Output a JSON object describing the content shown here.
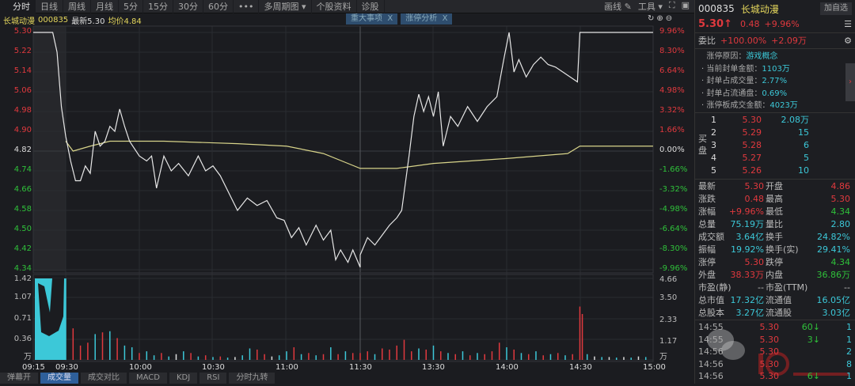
{
  "toolbar": {
    "tabs": [
      "分时",
      "日线",
      "周线",
      "月线",
      "5分",
      "15分",
      "30分",
      "60分",
      "•••",
      "多周期图 ▾",
      "个股资料",
      "诊股"
    ],
    "selected": 0,
    "draw": "画线 ✎",
    "tools": "工具 ▾"
  },
  "info": {
    "name": "长城动漫",
    "code": "000835",
    "latest": "最新5.30",
    "avg": "均价4.84",
    "tags": [
      {
        "label": "重大事项",
        "close": "X"
      },
      {
        "label": "涨停分析",
        "close": "X"
      }
    ]
  },
  "price_axis": {
    "left": [
      "5.30",
      "5.22",
      "5.14",
      "5.06",
      "4.98",
      "4.90",
      "4.82",
      "4.74",
      "4.66",
      "4.58",
      "4.50",
      "4.42",
      "4.34"
    ],
    "right": [
      "9.96%",
      "8.30%",
      "6.64%",
      "4.98%",
      "3.32%",
      "1.66%",
      "0.00%",
      "-1.66%",
      "-3.32%",
      "-4.98%",
      "-6.64%",
      "-8.30%",
      "-9.96%"
    ]
  },
  "volume_axis": {
    "left": [
      "1.42",
      "1.07",
      "0.71",
      "0.36",
      "万"
    ],
    "right": [
      "4.66",
      "3.50",
      "2.33",
      "1.17",
      "万"
    ]
  },
  "time_axis": [
    "09:15",
    "09:30",
    "10:00",
    "10:30",
    "11:00",
    "11:30",
    "13:30",
    "14:00",
    "14:30",
    "15:00"
  ],
  "bottom_tabs": [
    "弹幕开",
    "成交量",
    "成交对比",
    "MACD",
    "KDJ",
    "RSI",
    "分时九转"
  ],
  "chart_data": {
    "type": "line",
    "prev_close": 4.82,
    "ylim": [
      4.34,
      5.3
    ],
    "price": [
      [
        "09:15",
        5.3
      ],
      [
        "09:24",
        5.3
      ],
      [
        "09:26",
        5.22
      ],
      [
        "09:28",
        5.0
      ],
      [
        "09:30",
        4.88
      ],
      [
        "09:32",
        4.78
      ],
      [
        "09:34",
        4.7
      ],
      [
        "09:36",
        4.7
      ],
      [
        "09:38",
        4.76
      ],
      [
        "09:40",
        4.73
      ],
      [
        "09:42",
        4.9
      ],
      [
        "09:44",
        4.84
      ],
      [
        "09:46",
        4.86
      ],
      [
        "09:48",
        4.92
      ],
      [
        "09:50",
        4.9
      ],
      [
        "09:52",
        4.99
      ],
      [
        "09:54",
        4.92
      ],
      [
        "09:56",
        4.86
      ],
      [
        "10:00",
        4.8
      ],
      [
        "10:03",
        4.78
      ],
      [
        "10:05",
        4.8
      ],
      [
        "10:07",
        4.67
      ],
      [
        "10:10",
        4.8
      ],
      [
        "10:13",
        4.74
      ],
      [
        "10:16",
        4.77
      ],
      [
        "10:20",
        4.72
      ],
      [
        "10:24",
        4.8
      ],
      [
        "10:27",
        4.74
      ],
      [
        "10:30",
        4.76
      ],
      [
        "10:33",
        4.72
      ],
      [
        "10:36",
        4.66
      ],
      [
        "10:40",
        4.58
      ],
      [
        "10:44",
        4.63
      ],
      [
        "10:48",
        4.6
      ],
      [
        "10:52",
        4.62
      ],
      [
        "10:56",
        4.55
      ],
      [
        "10:59",
        4.54
      ],
      [
        "11:02",
        4.47
      ],
      [
        "11:05",
        4.51
      ],
      [
        "11:08",
        4.44
      ],
      [
        "11:12",
        4.52
      ],
      [
        "11:15",
        4.46
      ],
      [
        "11:18",
        4.5
      ],
      [
        "11:20",
        4.38
      ],
      [
        "11:22",
        4.42
      ],
      [
        "11:25",
        4.37
      ],
      [
        "11:27",
        4.42
      ],
      [
        "11:30",
        4.35
      ],
      [
        "13:00",
        4.4
      ],
      [
        "13:03",
        4.47
      ],
      [
        "13:06",
        4.44
      ],
      [
        "13:09",
        4.48
      ],
      [
        "13:12",
        4.52
      ],
      [
        "13:15",
        4.55
      ],
      [
        "13:17",
        4.58
      ],
      [
        "13:20",
        4.8
      ],
      [
        "13:22",
        4.96
      ],
      [
        "13:24",
        5.05
      ],
      [
        "13:26",
        4.98
      ],
      [
        "13:28",
        5.04
      ],
      [
        "13:30",
        4.96
      ],
      [
        "13:32",
        5.06
      ],
      [
        "13:34",
        4.84
      ],
      [
        "13:37",
        4.96
      ],
      [
        "13:40",
        4.92
      ],
      [
        "13:44",
        5.0
      ],
      [
        "13:48",
        4.94
      ],
      [
        "13:52",
        5.0
      ],
      [
        "13:56",
        5.04
      ],
      [
        "13:59",
        5.2
      ],
      [
        "14:01",
        5.3
      ],
      [
        "14:03",
        5.14
      ],
      [
        "14:05",
        5.19
      ],
      [
        "14:08",
        5.12
      ],
      [
        "14:11",
        5.17
      ],
      [
        "14:14",
        5.2
      ],
      [
        "14:17",
        5.17
      ],
      [
        "14:20",
        5.16
      ],
      [
        "14:23",
        5.14
      ],
      [
        "14:26",
        5.12
      ],
      [
        "14:29",
        5.1
      ],
      [
        "14:30",
        5.3
      ],
      [
        "15:00",
        5.3
      ]
    ],
    "avg": [
      [
        "09:30",
        4.86
      ],
      [
        "09:33",
        4.82
      ],
      [
        "09:40",
        4.84
      ],
      [
        "09:48",
        4.86
      ],
      [
        "10:10",
        4.86
      ],
      [
        "10:40",
        4.85
      ],
      [
        "11:00",
        4.84
      ],
      [
        "11:15",
        4.81
      ],
      [
        "11:25",
        4.77
      ],
      [
        "11:30",
        4.75
      ],
      [
        "13:15",
        4.75
      ],
      [
        "13:30",
        4.77
      ],
      [
        "14:00",
        4.79
      ],
      [
        "14:25",
        4.81
      ],
      [
        "14:30",
        4.84
      ],
      [
        "15:00",
        4.84
      ]
    ],
    "volume": [
      [
        "09:30",
        1.42,
        "d"
      ],
      [
        "09:33",
        0.55,
        "u"
      ],
      [
        "09:36",
        0.25,
        "u"
      ],
      [
        "09:39",
        0.3,
        "u"
      ],
      [
        "09:42",
        0.45,
        "d"
      ],
      [
        "09:45",
        0.48,
        "u"
      ],
      [
        "09:48",
        0.5,
        "d"
      ],
      [
        "09:51",
        0.38,
        "u"
      ],
      [
        "09:54",
        0.25,
        "d"
      ],
      [
        "09:57",
        0.22,
        "d"
      ],
      [
        "10:00",
        0.12,
        "u"
      ],
      [
        "10:03",
        0.15,
        "d"
      ],
      [
        "10:06",
        0.08,
        "d"
      ],
      [
        "10:09",
        0.12,
        "u"
      ],
      [
        "10:12",
        0.06,
        "d"
      ],
      [
        "10:15",
        0.1,
        "n"
      ],
      [
        "10:18",
        0.15,
        "d"
      ],
      [
        "10:21",
        0.12,
        "u"
      ],
      [
        "10:24",
        0.06,
        "d"
      ],
      [
        "10:27",
        0.08,
        "u"
      ],
      [
        "10:30",
        0.05,
        "d"
      ],
      [
        "10:33",
        0.06,
        "u"
      ],
      [
        "10:36",
        0.04,
        "d"
      ],
      [
        "10:39",
        0.05,
        "n"
      ],
      [
        "10:42",
        0.08,
        "d"
      ],
      [
        "10:45",
        0.2,
        "d"
      ],
      [
        "10:48",
        0.18,
        "u"
      ],
      [
        "10:51",
        0.1,
        "u"
      ],
      [
        "10:54",
        0.06,
        "n"
      ],
      [
        "10:57",
        0.08,
        "d"
      ],
      [
        "11:00",
        0.15,
        "d"
      ],
      [
        "11:03",
        0.22,
        "u"
      ],
      [
        "11:06",
        0.1,
        "d"
      ],
      [
        "11:09",
        0.12,
        "u"
      ],
      [
        "11:12",
        0.08,
        "d"
      ],
      [
        "11:15",
        0.1,
        "u"
      ],
      [
        "11:18",
        0.22,
        "d"
      ],
      [
        "11:21",
        0.1,
        "u"
      ],
      [
        "11:24",
        0.15,
        "d"
      ],
      [
        "11:27",
        0.12,
        "u"
      ],
      [
        "13:00",
        0.12,
        "u"
      ],
      [
        "13:03",
        0.15,
        "u"
      ],
      [
        "13:06",
        0.1,
        "d"
      ],
      [
        "13:09",
        0.2,
        "u"
      ],
      [
        "13:12",
        0.18,
        "u"
      ],
      [
        "13:15",
        0.25,
        "u"
      ],
      [
        "13:18",
        0.35,
        "u"
      ],
      [
        "13:21",
        0.15,
        "u"
      ],
      [
        "13:24",
        0.2,
        "d"
      ],
      [
        "13:27",
        0.18,
        "u"
      ],
      [
        "13:30",
        0.25,
        "d"
      ],
      [
        "13:33",
        0.15,
        "u"
      ],
      [
        "13:36",
        0.12,
        "d"
      ],
      [
        "13:39",
        0.1,
        "u"
      ],
      [
        "13:42",
        0.15,
        "d"
      ],
      [
        "13:45",
        0.08,
        "u"
      ],
      [
        "13:48",
        0.12,
        "d"
      ],
      [
        "13:51",
        0.1,
        "u"
      ],
      [
        "13:54",
        0.15,
        "u"
      ],
      [
        "13:57",
        0.3,
        "u"
      ],
      [
        "14:00",
        0.22,
        "d"
      ],
      [
        "14:03",
        0.18,
        "u"
      ],
      [
        "14:06",
        0.12,
        "d"
      ],
      [
        "14:09",
        0.1,
        "u"
      ],
      [
        "14:12",
        0.15,
        "d"
      ],
      [
        "14:15",
        0.08,
        "u"
      ],
      [
        "14:18",
        0.1,
        "d"
      ],
      [
        "14:21",
        0.12,
        "u"
      ],
      [
        "14:24",
        0.08,
        "d"
      ],
      [
        "14:27",
        0.1,
        "u"
      ],
      [
        "14:30",
        0.93,
        "u"
      ],
      [
        "14:31",
        0.8,
        "u"
      ],
      [
        "14:33",
        0.1,
        "d"
      ],
      [
        "14:36",
        0.06,
        "n"
      ],
      [
        "14:39",
        0.05,
        "d"
      ],
      [
        "14:42",
        0.05,
        "n"
      ],
      [
        "14:45",
        0.04,
        "d"
      ],
      [
        "14:48",
        0.05,
        "n"
      ],
      [
        "14:51",
        0.04,
        "d"
      ],
      [
        "14:54",
        0.06,
        "n"
      ],
      [
        "14:57",
        0.05,
        "d"
      ]
    ],
    "volume_ylim": [
      0,
      1.42
    ]
  },
  "panel": {
    "code": "000835",
    "name": "长城动漫",
    "add_watch": "加自选",
    "price": "5.30",
    "arrow": "↑",
    "change": "0.48",
    "pct": "+9.96%",
    "webi_label": "委比",
    "webi_pct": "+100.00%",
    "webi_diff": "+2.09万",
    "limit": [
      {
        "k": "涨停原因：",
        "v": "游戏概念"
      },
      {
        "k": "当前封单金额：",
        "v": "1103万"
      },
      {
        "k": "封单占成交量：",
        "v": "2.77%"
      },
      {
        "k": "封单占流通盘：",
        "v": "0.69%"
      },
      {
        "k": "涨停板成交金额：",
        "v": "4023万"
      }
    ],
    "bid_label": "买盘",
    "bids": [
      {
        "n": "1",
        "p": "5.30",
        "q": "2.08万"
      },
      {
        "n": "2",
        "p": "5.29",
        "q": "15"
      },
      {
        "n": "3",
        "p": "5.28",
        "q": "6"
      },
      {
        "n": "4",
        "p": "5.27",
        "q": "5"
      },
      {
        "n": "5",
        "p": "5.26",
        "q": "10"
      }
    ],
    "stats": [
      [
        "最新",
        "5.30",
        "red",
        "开盘",
        "4.86",
        "red"
      ],
      [
        "涨跌",
        "0.48",
        "red",
        "最高",
        "5.30",
        "red"
      ],
      [
        "涨幅",
        "+9.96%",
        "red",
        "最低",
        "4.34",
        "green"
      ],
      [
        "总量",
        "75.19万",
        "cyan",
        "量比",
        "2.80",
        "cyan"
      ],
      [
        "成交额",
        "3.64亿",
        "cyan",
        "换手",
        "24.82%",
        "cyan"
      ],
      [
        "振幅",
        "19.92%",
        "cyan",
        "换手(实)",
        "29.41%",
        "cyan"
      ],
      [
        "涨停",
        "5.30",
        "red",
        "跌停",
        "4.34",
        "green"
      ],
      [
        "外盘",
        "38.33万",
        "red",
        "内盘",
        "36.86万",
        "green"
      ],
      [
        "市盈(静)",
        "--",
        "gray",
        "市盈(TTM)",
        "--",
        "gray"
      ],
      [
        "总市值",
        "17.32亿",
        "cyan",
        "流通值",
        "16.05亿",
        "cyan"
      ],
      [
        "总股本",
        "3.27亿",
        "cyan",
        "流通股",
        "3.03亿",
        "cyan"
      ]
    ],
    "ticks": [
      [
        "14:55",
        "5.30",
        "60↓",
        "1"
      ],
      [
        "14:55",
        "5.30",
        "3↓",
        "1"
      ],
      [
        "14:56",
        "5.30",
        "",
        "2"
      ],
      [
        "14:56",
        "5.30",
        "",
        "8"
      ],
      [
        "14:56",
        "5.30",
        "6↓",
        "1"
      ]
    ]
  },
  "watermark": {
    "text1": "隔水瞭源",
    "text2": "10 猎境网",
    "text3": "Huang.CN"
  },
  "colors": {
    "red": "#e0393e",
    "green": "#2fc13a",
    "cyan": "#3cc8d8",
    "price_line": "#e6e6e6",
    "avg_line": "#d8d48a",
    "bg": "#1b1c20"
  }
}
